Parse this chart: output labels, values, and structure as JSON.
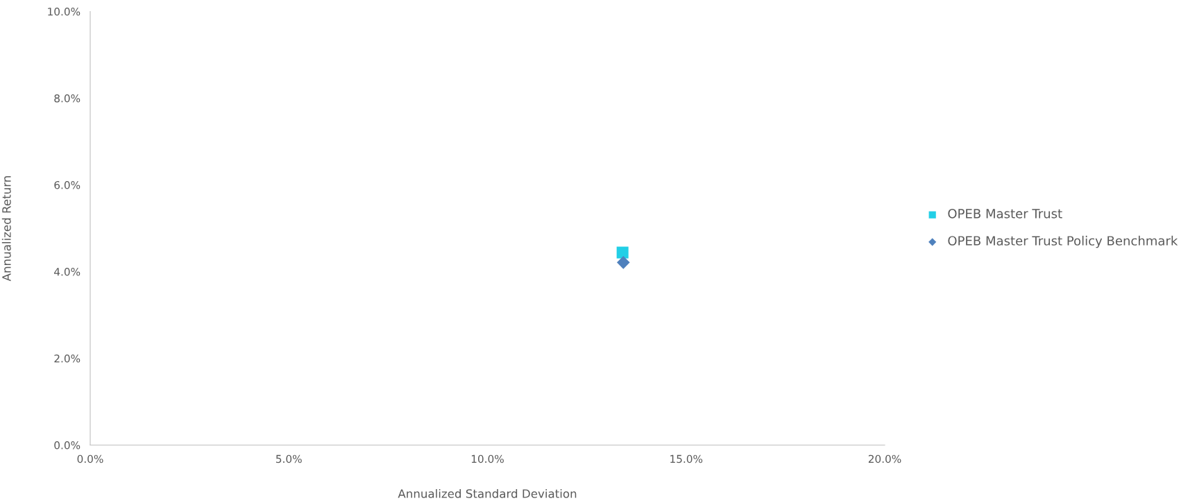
{
  "chart_data": {
    "type": "scatter",
    "xlabel": "Annualized Standard Deviation",
    "ylabel": "Annualized Return",
    "series": [
      {
        "name": "OPEB Master Trust",
        "color": "#22cfe6",
        "marker": "square",
        "x": [
          13.4
        ],
        "values": [
          4.44
        ]
      },
      {
        "name": "OPEB Master Trust Policy Benchmark",
        "color": "#4f81bd",
        "marker": "diamond",
        "x": [
          13.42
        ],
        "values": [
          4.21
        ]
      }
    ],
    "xlim": [
      0,
      20
    ],
    "ylim": [
      0,
      10
    ],
    "xticks": [
      {
        "value": 0,
        "label": "0.0%"
      },
      {
        "value": 5,
        "label": "5.0%"
      },
      {
        "value": 10,
        "label": "10.0%"
      },
      {
        "value": 15,
        "label": "15.0%"
      },
      {
        "value": 20,
        "label": "20.0%"
      }
    ],
    "yticks": [
      {
        "value": 0,
        "label": "0.0%"
      },
      {
        "value": 2,
        "label": "2.0%"
      },
      {
        "value": 4,
        "label": "4.0%"
      },
      {
        "value": 6,
        "label": "6.0%"
      },
      {
        "value": 8,
        "label": "8.0%"
      },
      {
        "value": 10,
        "label": "10.0%"
      }
    ],
    "grid": false,
    "legend": "right"
  }
}
